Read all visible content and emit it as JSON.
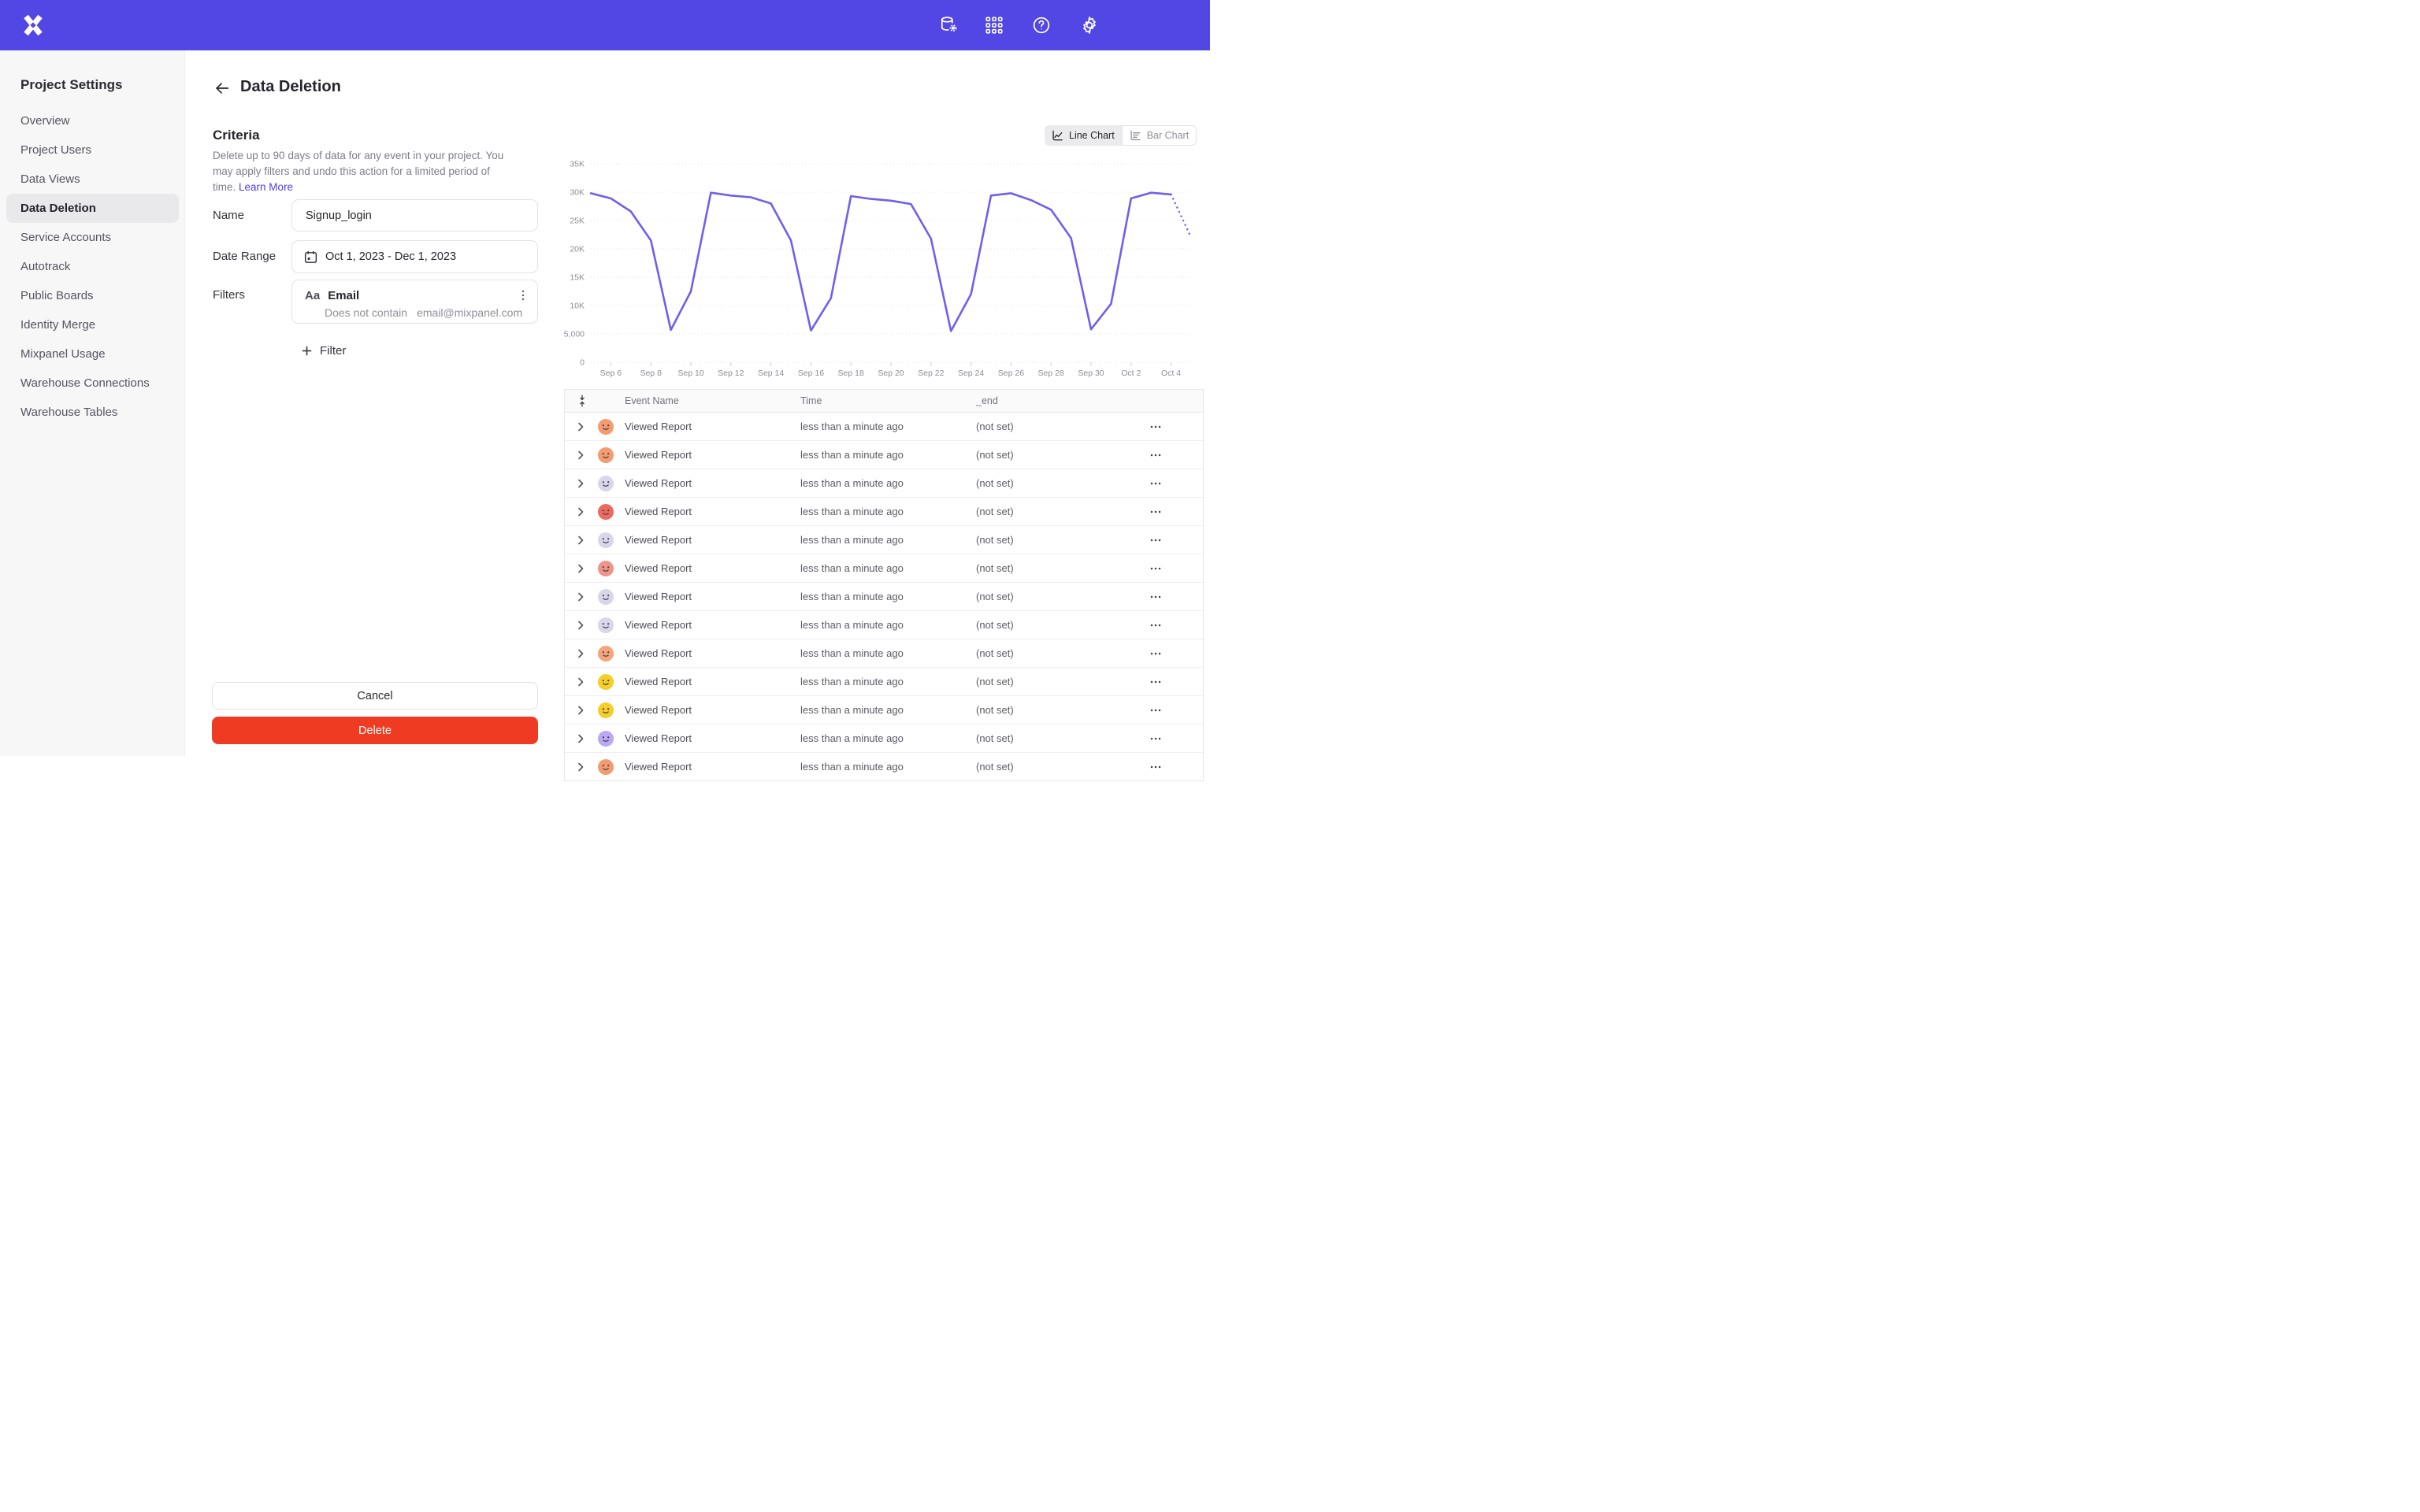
{
  "topbar": {
    "icons": [
      "data-pipeline",
      "apps-grid",
      "help",
      "settings"
    ]
  },
  "sidebar": {
    "title": "Project Settings",
    "items": [
      {
        "label": "Overview",
        "active": false
      },
      {
        "label": "Project Users",
        "active": false
      },
      {
        "label": "Data Views",
        "active": false
      },
      {
        "label": "Data Deletion",
        "active": true
      },
      {
        "label": "Service Accounts",
        "active": false
      },
      {
        "label": "Autotrack",
        "active": false
      },
      {
        "label": "Public Boards",
        "active": false
      },
      {
        "label": "Identity Merge",
        "active": false
      },
      {
        "label": "Mixpanel Usage",
        "active": false
      },
      {
        "label": "Warehouse Connections",
        "active": false
      },
      {
        "label": "Warehouse Tables",
        "active": false
      }
    ]
  },
  "header": {
    "title": "Data Deletion"
  },
  "criteria": {
    "heading": "Criteria",
    "description": "Delete up to 90 days of data for any event in your project. You may apply filters and undo this action for a limited period of time.",
    "learn_more_label": "Learn More",
    "name_label": "Name",
    "name_value": "Signup_login",
    "date_label": "Date Range",
    "date_value": "Oct 1, 2023 - Dec 1, 2023",
    "filters_label": "Filters",
    "filter": {
      "type_badge": "Aa",
      "property": "Email",
      "operator": "Does not contain",
      "value": "email@mixpanel.com"
    },
    "add_filter_label": "Filter",
    "cancel_label": "Cancel",
    "delete_label": "Delete"
  },
  "chart": {
    "toggle": {
      "line_label": "Line Chart",
      "bar_label": "Bar Chart",
      "selected": "Line Chart"
    },
    "chart_data": {
      "type": "line",
      "title": "",
      "xlabel": "",
      "ylabel": "",
      "x": [
        "Sep 5",
        "Sep 6",
        "Sep 7",
        "Sep 8",
        "Sep 9",
        "Sep 10",
        "Sep 11",
        "Sep 12",
        "Sep 13",
        "Sep 14",
        "Sep 15",
        "Sep 16",
        "Sep 17",
        "Sep 18",
        "Sep 19",
        "Sep 20",
        "Sep 21",
        "Sep 22",
        "Sep 23",
        "Sep 24",
        "Sep 25",
        "Sep 26",
        "Sep 27",
        "Sep 28",
        "Sep 29",
        "Sep 30",
        "Oct 1",
        "Oct 2",
        "Oct 3",
        "Oct 4",
        "Oct 5"
      ],
      "series": [
        {
          "name": "Events",
          "values": [
            29800,
            28900,
            26600,
            21500,
            5700,
            12500,
            29900,
            29400,
            29100,
            28000,
            21500,
            5600,
            11300,
            29300,
            28800,
            28500,
            27900,
            21800,
            5500,
            12000,
            29400,
            29800,
            28600,
            26900,
            21900,
            5800,
            10300,
            28900,
            29900,
            29600,
            22000
          ]
        }
      ],
      "projected_last_point": true,
      "x_tick_labels": [
        "Sep 6",
        "Sep 8",
        "Sep 10",
        "Sep 12",
        "Sep 14",
        "Sep 16",
        "Sep 18",
        "Sep 20",
        "Sep 22",
        "Sep 24",
        "Sep 26",
        "Sep 28",
        "Sep 30",
        "Oct 2",
        "Oct 4"
      ],
      "y_ticks": [
        {
          "label": "35K",
          "value": 35000
        },
        {
          "label": "30K",
          "value": 30000
        },
        {
          "label": "25K",
          "value": 25000
        },
        {
          "label": "20K",
          "value": 20000
        },
        {
          "label": "15K",
          "value": 15000
        },
        {
          "label": "10K",
          "value": 10000
        },
        {
          "label": "5,000",
          "value": 5000
        },
        {
          "label": "0",
          "value": 0
        }
      ],
      "ylim": [
        0,
        35000
      ],
      "grid": true,
      "legend": "none",
      "line_color": "#6E60ED"
    }
  },
  "table": {
    "columns": [
      "Event Name",
      "Time",
      "_end"
    ],
    "rows": [
      {
        "event": "Viewed Report",
        "time": "less than a minute ago",
        "end": "(not set)",
        "avatar_color": "#F59B70"
      },
      {
        "event": "Viewed Report",
        "time": "less than a minute ago",
        "end": "(not set)",
        "avatar_color": "#F59B70"
      },
      {
        "event": "Viewed Report",
        "time": "less than a minute ago",
        "end": "(not set)",
        "avatar_color": "#D8D6E8"
      },
      {
        "event": "Viewed Report",
        "time": "less than a minute ago",
        "end": "(not set)",
        "avatar_color": "#ED6A5E"
      },
      {
        "event": "Viewed Report",
        "time": "less than a minute ago",
        "end": "(not set)",
        "avatar_color": "#D8D6E8"
      },
      {
        "event": "Viewed Report",
        "time": "less than a minute ago",
        "end": "(not set)",
        "avatar_color": "#F0948A"
      },
      {
        "event": "Viewed Report",
        "time": "less than a minute ago",
        "end": "(not set)",
        "avatar_color": "#D8D6E8"
      },
      {
        "event": "Viewed Report",
        "time": "less than a minute ago",
        "end": "(not set)",
        "avatar_color": "#D8D6E8"
      },
      {
        "event": "Viewed Report",
        "time": "less than a minute ago",
        "end": "(not set)",
        "avatar_color": "#F5A47C"
      },
      {
        "event": "Viewed Report",
        "time": "less than a minute ago",
        "end": "(not set)",
        "avatar_color": "#F6CE28"
      },
      {
        "event": "Viewed Report",
        "time": "less than a minute ago",
        "end": "(not set)",
        "avatar_color": "#F6CE28"
      },
      {
        "event": "Viewed Report",
        "time": "less than a minute ago",
        "end": "(not set)",
        "avatar_color": "#BBA8F2"
      }
    ],
    "partial_row": {
      "event": "Viewed Report",
      "time": "less than a minute ago",
      "end": "(not set)",
      "avatar_color": "#F59B70"
    }
  },
  "colors": {
    "topbar": "#5246E5",
    "link": "#4C3FE4",
    "delete_button": "#EE3B22",
    "chart_line": "#6E60ED",
    "active_item_bg": "#E9E9EC"
  }
}
